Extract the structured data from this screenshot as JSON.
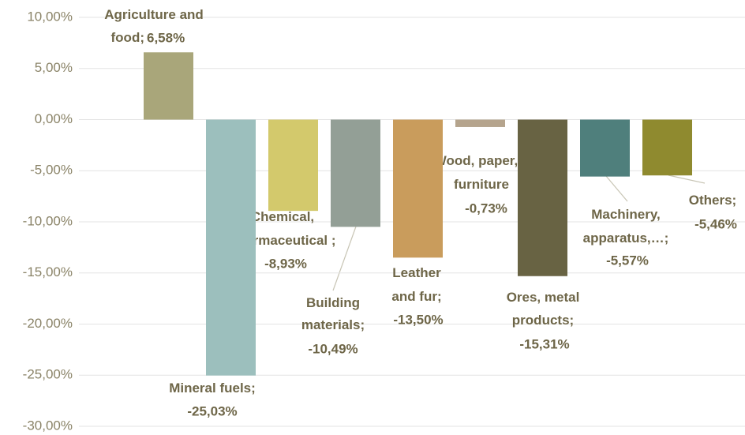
{
  "chart_data": {
    "type": "bar",
    "categories": [
      "Agriculture and food;",
      "Mineral fuels;",
      "Chemical, pharmaceutical ;",
      "Building materials;",
      "Leather and fur;",
      "Wood, paper, furniture",
      "Ores, metal products;",
      "Machinery, apparatus,…;",
      "Others;"
    ],
    "values": [
      6.58,
      -25.03,
      -8.93,
      -10.49,
      -13.5,
      -0.73,
      -15.31,
      -5.57,
      -5.46
    ],
    "value_labels": [
      "6,58%",
      "-25,03%",
      "-8,93%",
      "-10,49%",
      "-13,50%",
      "-0,73%",
      "-15,31%",
      "-5,57%",
      "-5,46%"
    ],
    "colors": [
      "#a9a67a",
      "#9cbfbd",
      "#d3c96c",
      "#939f96",
      "#c99c5c",
      "#b5a48d",
      "#686343",
      "#4f7f7c",
      "#8f8a2f"
    ],
    "ylim": [
      -30,
      10
    ],
    "yticks": [
      {
        "value": -30,
        "label": "-30,00%"
      },
      {
        "value": -25,
        "label": "-25,00%"
      },
      {
        "value": -20,
        "label": "-20,00%"
      },
      {
        "value": -15,
        "label": "-15,00%"
      },
      {
        "value": -10,
        "label": "-10,00%"
      },
      {
        "value": -5,
        "label": "-5,00%"
      },
      {
        "value": 0,
        "label": "0,00%"
      },
      {
        "value": 5,
        "label": "5,00%"
      },
      {
        "value": 10,
        "label": "10,00%"
      }
    ],
    "grid": true
  }
}
